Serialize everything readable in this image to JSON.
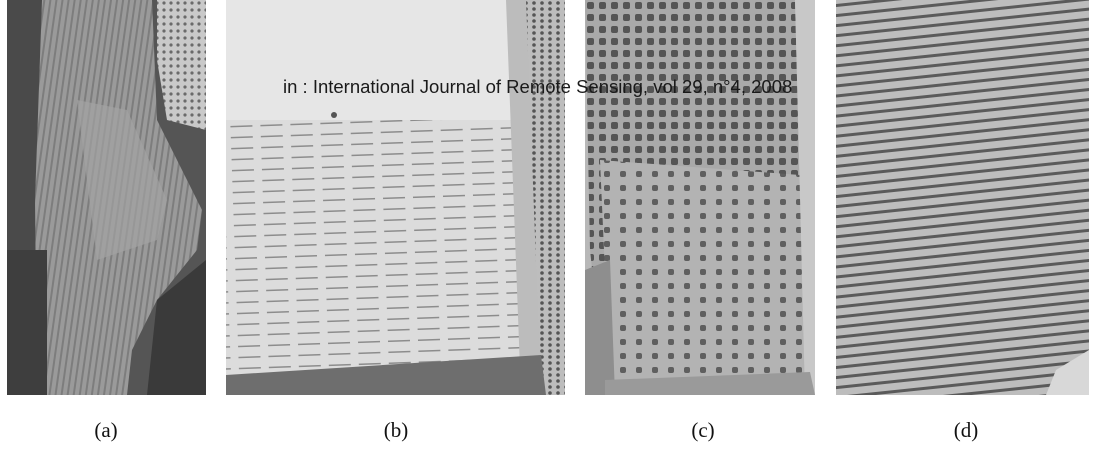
{
  "citation": "in : International Journal of Remote Sensing, vol 29, n°4, 2008",
  "panels": [
    {
      "caption": "(a)"
    },
    {
      "caption": "(b)"
    },
    {
      "caption": "(c)"
    },
    {
      "caption": "(d)"
    }
  ]
}
